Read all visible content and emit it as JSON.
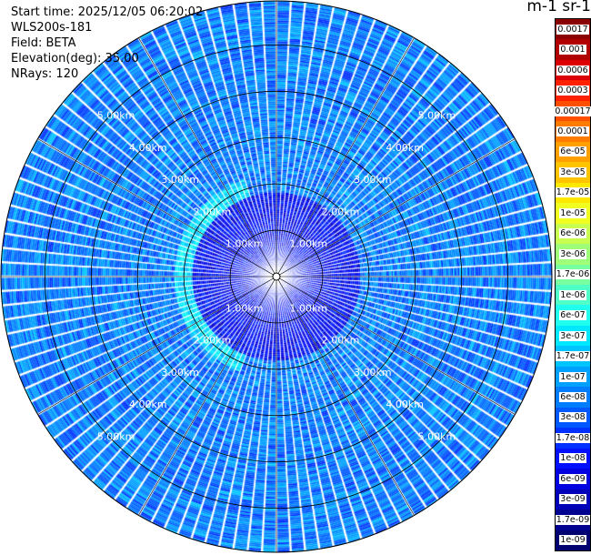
{
  "info": {
    "start_time": "Start time: 2025/12/05 06:20:02",
    "instrument": "WLS200s-181",
    "field": "Field: BETA",
    "elevation": "Elevation(deg): 35.00",
    "nrays": "NRays: 120"
  },
  "colorbar": {
    "title": "m-1 sr-1",
    "labels": [
      "0.0017",
      "0.001",
      "0.0006",
      "0.0003",
      "0.00017",
      "0.0001",
      "6e-05",
      "3e-05",
      "1.7e-05",
      "1e-05",
      "6e-06",
      "3e-06",
      "1.7e-06",
      "1e-06",
      "6e-07",
      "3e-07",
      "1.7e-07",
      "1e-07",
      "6e-08",
      "3e-08",
      "1.7e-08",
      "1e-08",
      "6e-09",
      "3e-09",
      "1.7e-09",
      "1e-09"
    ],
    "colors": [
      "#8b0000",
      "#b00000",
      "#dd0000",
      "#ff2000",
      "#ff5000",
      "#ff7c00",
      "#ffa000",
      "#ffc400",
      "#ffe800",
      "#f0ff20",
      "#c8ff50",
      "#a0ff78",
      "#78ffa0",
      "#50ffc8",
      "#20ffee",
      "#00e8ff",
      "#00c4ff",
      "#00a0ff",
      "#007cff",
      "#0058ff",
      "#0030ff",
      "#0010ff",
      "#0000e0",
      "#0000b8",
      "#000090",
      "#000070"
    ]
  },
  "chart_data": {
    "type": "heatmap",
    "projection": "polar PPI",
    "field": "BETA",
    "unit": "m-1 sr-1",
    "nrays": 120,
    "elevation_deg": 35.0,
    "range_rings_km": [
      1.0,
      2.0,
      3.0,
      4.0,
      5.0
    ],
    "ring_labels": [
      "1.00km",
      "2.00km",
      "3.00km",
      "4.00km",
      "5.00km"
    ],
    "max_range_km": 5.95,
    "color_scale": "log",
    "value_range": [
      1e-09,
      0.0017
    ],
    "background_beta": 6e-08,
    "features": [
      {
        "description": "near-field clutter, low backscatter",
        "range_km": [
          0.0,
          1.0
        ],
        "beta": 1e-08
      },
      {
        "description": "enhanced aerosol band west of site",
        "azimuth_deg": [
          200,
          340
        ],
        "range_km": [
          1.8,
          2.2
        ],
        "beta": 3e-07
      },
      {
        "description": "mid-range ring",
        "range_km": [
          1.0,
          1.8
        ],
        "beta": 1e-08
      }
    ],
    "grid": true
  }
}
